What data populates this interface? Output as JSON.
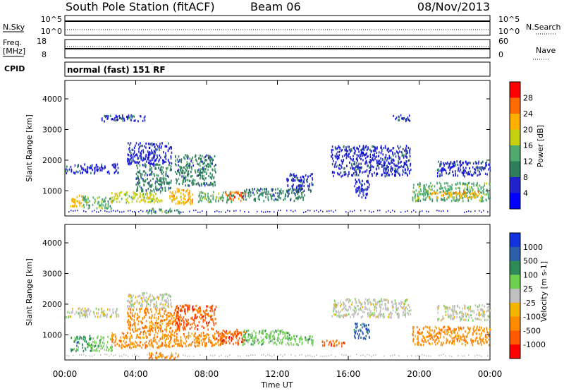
{
  "header": {
    "station": "South Pole Station (fitACF)",
    "beam": "Beam 06",
    "date": "08/Nov/2013"
  },
  "nsky_panel": {
    "left_label": "N.Sky",
    "left_ticks": [
      "10^5",
      "10^0"
    ],
    "right_label": "N.Search",
    "right_ticks": [
      "10^5",
      "10^0"
    ]
  },
  "freq_panel": {
    "left_label_line1": "Freq.",
    "left_label_line2": "[MHz]",
    "left_ticks": [
      "18",
      "8"
    ],
    "right_label": "Nave",
    "right_ticks": [
      "60",
      "0"
    ]
  },
  "cpid_panel": {
    "label": "CPID",
    "value": "normal (fast) 151 RF"
  },
  "colors": {
    "power": [
      "#0000ff",
      "#2222cc",
      "#2e7d5b",
      "#4faa6f",
      "#c4d010",
      "#ffb000",
      "#ff6a00",
      "#ff0000"
    ],
    "velocity": [
      "#ff0000",
      "#ff5a00",
      "#ff8c00",
      "#f4b400",
      "#c0c0c0",
      "#6fd04f",
      "#2e8b57",
      "#2b5ea8",
      "#1133dd"
    ]
  },
  "x_axis": {
    "label": "Time UT",
    "ticks": [
      "00:00",
      "04:00",
      "08:00",
      "12:00",
      "16:00",
      "20:00",
      "00:00"
    ]
  },
  "chart_data": [
    {
      "type": "heatmap",
      "panel": "power",
      "ylabel": "Slant Range [km]",
      "ylim": [
        180,
        4600
      ],
      "xlim_hours": [
        0,
        24
      ],
      "yticks": [
        "1000",
        "2000",
        "3000",
        "4000"
      ],
      "colorbar_label": "Power [dB]",
      "colorbar_ticks": [
        "4",
        "8",
        "12",
        "16",
        "20",
        "24",
        "28"
      ],
      "clim": [
        0,
        30
      ],
      "regions": [
        {
          "t": [
            0.3,
            1.0
          ],
          "r": [
            500,
            900
          ],
          "level": 5
        },
        {
          "t": [
            1.0,
            2.6
          ],
          "r": [
            450,
            850
          ],
          "level": 3
        },
        {
          "t": [
            2.6,
            5.5
          ],
          "r": [
            650,
            1000
          ],
          "level": 4
        },
        {
          "t": [
            4.0,
            6.0
          ],
          "r": [
            1000,
            1900
          ],
          "level": 2
        },
        {
          "t": [
            4.5,
            6.5
          ],
          "r": [
            300,
            450
          ],
          "level": 3
        },
        {
          "t": [
            5.8,
            7.2
          ],
          "r": [
            600,
            1100
          ],
          "level": 5
        },
        {
          "t": [
            6.2,
            8.5
          ],
          "r": [
            1200,
            2200
          ],
          "level": 2
        },
        {
          "t": [
            7.5,
            9.5
          ],
          "r": [
            650,
            1000
          ],
          "level": 3
        },
        {
          "t": [
            9.0,
            10.2
          ],
          "r": [
            700,
            1000
          ],
          "level": 6
        },
        {
          "t": [
            10.0,
            13.5
          ],
          "r": [
            700,
            1100
          ],
          "level": 2
        },
        {
          "t": [
            12.5,
            14.0
          ],
          "r": [
            1000,
            1600
          ],
          "level": 1
        },
        {
          "t": [
            0.0,
            3.0
          ],
          "r": [
            1600,
            1900
          ],
          "level": 1
        },
        {
          "t": [
            3.5,
            6.0
          ],
          "r": [
            1900,
            2600
          ],
          "level": 1
        },
        {
          "t": [
            15.0,
            19.5
          ],
          "r": [
            1500,
            2500
          ],
          "level": 1
        },
        {
          "t": [
            16.3,
            17.2
          ],
          "r": [
            800,
            1400
          ],
          "level": 1
        },
        {
          "t": [
            18.5,
            19.5
          ],
          "r": [
            3300,
            3500
          ],
          "level": 1
        },
        {
          "t": [
            2.0,
            4.5
          ],
          "r": [
            3300,
            3500
          ],
          "level": 1
        },
        {
          "t": [
            19.6,
            24.0
          ],
          "r": [
            700,
            1300
          ],
          "level": 3
        },
        {
          "t": [
            20.5,
            23.5
          ],
          "r": [
            800,
            1000
          ],
          "level": 5
        },
        {
          "t": [
            21.0,
            24.0
          ],
          "r": [
            1500,
            2000
          ],
          "level": 1
        }
      ]
    },
    {
      "type": "heatmap",
      "panel": "velocity",
      "ylabel": "Slant Range [km]",
      "ylim": [
        180,
        4600
      ],
      "xlim_hours": [
        0,
        24
      ],
      "yticks": [
        "1000",
        "2000",
        "3000",
        "4000"
      ],
      "colorbar_label": "Velocity [m s-1]",
      "colorbar_ticks": [
        "1000",
        "500",
        "100",
        "25",
        "-25",
        "-100",
        "-500",
        "-1000"
      ],
      "clim": [
        -1000,
        1000
      ],
      "regions": [
        {
          "t": [
            0.3,
            1.5
          ],
          "r": [
            500,
            1000
          ],
          "level": 6
        },
        {
          "t": [
            1.5,
            2.7
          ],
          "r": [
            500,
            1000
          ],
          "level": 5
        },
        {
          "t": [
            2.6,
            6.0
          ],
          "r": [
            600,
            1100
          ],
          "level": 2
        },
        {
          "t": [
            3.5,
            6.5
          ],
          "r": [
            1100,
            1900
          ],
          "level": 2
        },
        {
          "t": [
            4.5,
            6.5
          ],
          "r": [
            250,
            450
          ],
          "level": 2
        },
        {
          "t": [
            6.2,
            8.5
          ],
          "r": [
            1200,
            2000
          ],
          "level": 1
        },
        {
          "t": [
            6.0,
            9.0
          ],
          "r": [
            650,
            1100
          ],
          "level": 2
        },
        {
          "t": [
            8.5,
            10.2
          ],
          "r": [
            700,
            1200
          ],
          "level": 1
        },
        {
          "t": [
            10.0,
            12.8
          ],
          "r": [
            700,
            1200
          ],
          "level": 5
        },
        {
          "t": [
            12.5,
            14.0
          ],
          "r": [
            700,
            1000
          ],
          "level": 5
        },
        {
          "t": [
            0.0,
            3.0
          ],
          "r": [
            1600,
            1900
          ],
          "level": 4
        },
        {
          "t": [
            3.5,
            6.0
          ],
          "r": [
            1900,
            2400
          ],
          "level": 4
        },
        {
          "t": [
            15.0,
            19.5
          ],
          "r": [
            1600,
            2200
          ],
          "level": 4
        },
        {
          "t": [
            16.3,
            17.2
          ],
          "r": [
            900,
            1400
          ],
          "level": 7
        },
        {
          "t": [
            14.5,
            15.8
          ],
          "r": [
            650,
            850
          ],
          "level": 1
        },
        {
          "t": [
            19.6,
            24.0
          ],
          "r": [
            700,
            1300
          ],
          "level": 2
        },
        {
          "t": [
            21.0,
            24.0
          ],
          "r": [
            1500,
            2000
          ],
          "level": 4
        }
      ]
    }
  ]
}
